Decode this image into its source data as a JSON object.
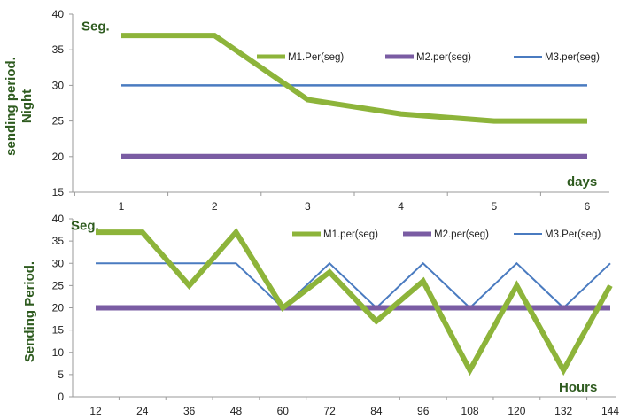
{
  "chart_data": [
    {
      "type": "line",
      "ylabel_lines": [
        "sending period.",
        "Night"
      ],
      "unit_label": "Seg.",
      "xlabel": "days",
      "categories": [
        "1",
        "2",
        "3",
        "4",
        "5",
        "6"
      ],
      "ylim": [
        15,
        40
      ],
      "yticks": [
        "15",
        "20",
        "25",
        "30",
        "35",
        "40"
      ],
      "grid": false,
      "legend": "top-right",
      "series": [
        {
          "name": "M1.Per(seg)",
          "color": "#8db43a",
          "values": [
            37,
            37,
            28,
            26,
            25,
            25
          ]
        },
        {
          "name": "M2.per(seg)",
          "color": "#7a5ca3",
          "values": [
            20,
            20,
            20,
            20,
            20,
            20
          ]
        },
        {
          "name": "M3.per(seg)",
          "color": "#4a7bc0",
          "values": [
            30,
            30,
            30,
            30,
            30,
            30
          ]
        }
      ]
    },
    {
      "type": "line",
      "ylabel_lines": [
        "Sending Period."
      ],
      "unit_label": "Seg.",
      "xlabel": "Hours",
      "categories": [
        "12",
        "24",
        "36",
        "48",
        "60",
        "72",
        "84",
        "96",
        "108",
        "120",
        "132",
        "144"
      ],
      "ylim": [
        0,
        40
      ],
      "yticks": [
        "0",
        "5",
        "10",
        "15",
        "20",
        "25",
        "30",
        "35",
        "40"
      ],
      "grid": false,
      "legend": "top-right",
      "series": [
        {
          "name": "M1.per(seg)",
          "color": "#8db43a",
          "values": [
            37,
            37,
            25,
            37,
            20,
            28,
            17,
            26,
            6,
            25,
            6,
            25
          ]
        },
        {
          "name": "M2.per(seg)",
          "color": "#7a5ca3",
          "values": [
            20,
            20,
            20,
            20,
            20,
            20,
            20,
            20,
            20,
            20,
            20,
            20
          ]
        },
        {
          "name": "M3.Per(seg)",
          "color": "#4a7bc0",
          "values": [
            30,
            30,
            30,
            30,
            20,
            30,
            20,
            30,
            20,
            30,
            20,
            30
          ]
        }
      ]
    }
  ]
}
